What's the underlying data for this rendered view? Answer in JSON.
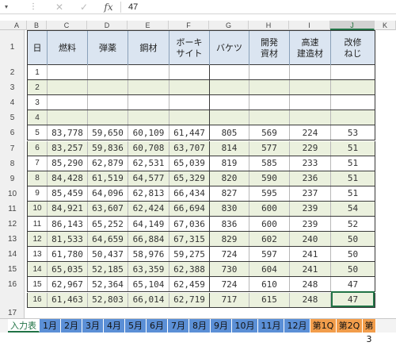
{
  "formula_bar": {
    "name_box_arrow": "▾",
    "dots": "⋮",
    "cancel_icon": "✕",
    "enter_icon": "✓",
    "fx": "fx",
    "value": "47"
  },
  "columns": [
    "A",
    "B",
    "C",
    "D",
    "E",
    "F",
    "G",
    "H",
    "I",
    "J",
    "K"
  ],
  "header": {
    "col_B": "日",
    "col_C": "燃料",
    "col_D": "弾薬",
    "col_E": "鋼材",
    "col_F": "ボーキ\nサイト",
    "col_G": "バケツ",
    "col_H": "開発\n資材",
    "col_I": "高速\n建造材",
    "col_J": "改修\nねじ"
  },
  "rows": [
    {
      "day": "1",
      "c": "",
      "d": "",
      "e": "",
      "f": "",
      "g": "",
      "h": "",
      "i": "",
      "j": ""
    },
    {
      "day": "2",
      "c": "",
      "d": "",
      "e": "",
      "f": "",
      "g": "",
      "h": "",
      "i": "",
      "j": ""
    },
    {
      "day": "3",
      "c": "",
      "d": "",
      "e": "",
      "f": "",
      "g": "",
      "h": "",
      "i": "",
      "j": ""
    },
    {
      "day": "4",
      "c": "",
      "d": "",
      "e": "",
      "f": "",
      "g": "",
      "h": "",
      "i": "",
      "j": ""
    },
    {
      "day": "5",
      "c": "83,778",
      "d": "59,650",
      "e": "60,109",
      "f": "61,447",
      "g": "805",
      "h": "569",
      "i": "224",
      "j": "53"
    },
    {
      "day": "6",
      "c": "83,257",
      "d": "59,836",
      "e": "60,708",
      "f": "63,707",
      "g": "814",
      "h": "577",
      "i": "229",
      "j": "51"
    },
    {
      "day": "7",
      "c": "85,290",
      "d": "62,879",
      "e": "62,531",
      "f": "65,039",
      "g": "819",
      "h": "585",
      "i": "233",
      "j": "51"
    },
    {
      "day": "8",
      "c": "84,428",
      "d": "61,519",
      "e": "64,577",
      "f": "65,329",
      "g": "820",
      "h": "590",
      "i": "236",
      "j": "51"
    },
    {
      "day": "9",
      "c": "85,459",
      "d": "64,096",
      "e": "62,813",
      "f": "66,434",
      "g": "827",
      "h": "595",
      "i": "237",
      "j": "51"
    },
    {
      "day": "10",
      "c": "84,921",
      "d": "63,607",
      "e": "62,424",
      "f": "66,694",
      "g": "830",
      "h": "600",
      "i": "239",
      "j": "54"
    },
    {
      "day": "11",
      "c": "86,143",
      "d": "65,252",
      "e": "64,149",
      "f": "67,036",
      "g": "836",
      "h": "600",
      "i": "239",
      "j": "52"
    },
    {
      "day": "12",
      "c": "81,533",
      "d": "64,659",
      "e": "66,884",
      "f": "67,315",
      "g": "829",
      "h": "602",
      "i": "240",
      "j": "50"
    },
    {
      "day": "13",
      "c": "61,780",
      "d": "50,437",
      "e": "58,976",
      "f": "59,275",
      "g": "724",
      "h": "597",
      "i": "241",
      "j": "50"
    },
    {
      "day": "14",
      "c": "65,035",
      "d": "52,185",
      "e": "63,359",
      "f": "62,388",
      "g": "730",
      "h": "604",
      "i": "241",
      "j": "50"
    },
    {
      "day": "15",
      "c": "62,967",
      "d": "52,364",
      "e": "65,104",
      "f": "62,459",
      "g": "724",
      "h": "610",
      "i": "248",
      "j": "47"
    },
    {
      "day": "16",
      "c": "61,463",
      "d": "52,803",
      "e": "66,014",
      "f": "62,719",
      "g": "717",
      "h": "615",
      "i": "248",
      "j": "47"
    }
  ],
  "sheet_rows": [
    "1",
    "2",
    "3",
    "4",
    "5",
    "6",
    "7",
    "8",
    "9",
    "10",
    "11",
    "12",
    "13",
    "14",
    "15",
    "16",
    "17"
  ],
  "tabs": [
    {
      "label": "入力表",
      "style": "active"
    },
    {
      "label": "1月",
      "style": "blue"
    },
    {
      "label": "2月",
      "style": "blue"
    },
    {
      "label": "3月",
      "style": "blue"
    },
    {
      "label": "4月",
      "style": "blue"
    },
    {
      "label": "5月",
      "style": "blue"
    },
    {
      "label": "6月",
      "style": "blue"
    },
    {
      "label": "7月",
      "style": "blue"
    },
    {
      "label": "8月",
      "style": "blue"
    },
    {
      "label": "9月",
      "style": "blue"
    },
    {
      "label": "10月",
      "style": "blue"
    },
    {
      "label": "11月",
      "style": "blue"
    },
    {
      "label": "12月",
      "style": "blue"
    },
    {
      "label": "第1Q",
      "style": "orange"
    },
    {
      "label": "第2Q",
      "style": "orange"
    },
    {
      "label": "第3",
      "style": "orange"
    }
  ]
}
